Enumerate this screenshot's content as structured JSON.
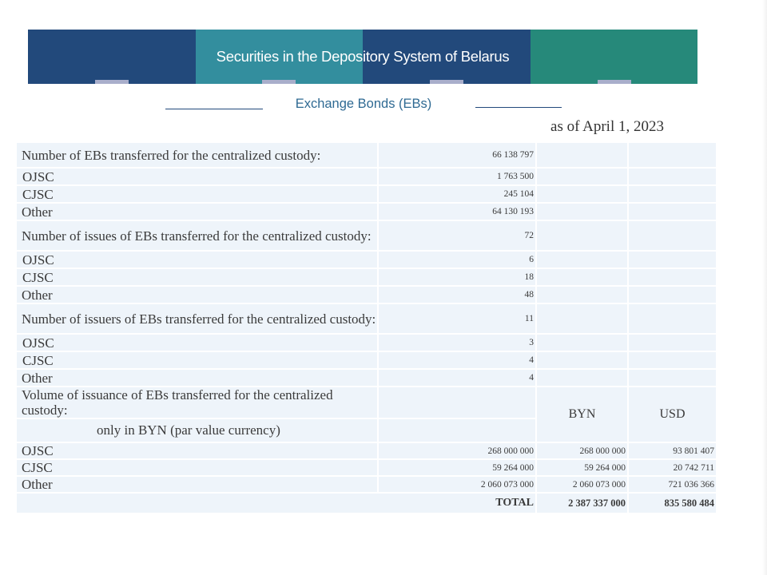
{
  "header": {
    "title": "Securities in the Depository System of Belarus",
    "subtitle": "Exchange Bonds (EBs)",
    "as_of": "as of April  1, 2023"
  },
  "colors": {
    "navy": "#22497b",
    "teal": "#338e9e",
    "green": "#26897a",
    "cell_bg": "#eef4fa",
    "subtitle_text": "#2f6a93"
  },
  "table": {
    "sections": {
      "ebs_count": {
        "label": "Number of EBs transferred for the centralized  custody:",
        "total": "66 138 797",
        "ojsc_label": "OJSC",
        "ojsc": "1 763 500",
        "cjsc_label": "CJSC",
        "cjsc": "245 104",
        "other_label": "Other",
        "other": "64 130 193"
      },
      "issues": {
        "label": "Number of issues of EBs transferred for the centralized custody:",
        "total": "72",
        "ojsc_label": "OJSC",
        "ojsc": "6",
        "cjsc_label": "CJSC",
        "cjsc": "18",
        "other_label": "Other",
        "other": "48"
      },
      "issuers": {
        "label": "Number of issuers of EBs transferred for the centralized custody:",
        "total": "11",
        "ojsc_label": "OJSC",
        "ojsc": "3",
        "cjsc_label": "CJSC",
        "cjsc": "4",
        "other_label": "Other",
        "other": "4"
      },
      "volume": {
        "label": "Volume of issuance of EBs transferred for the centralized custody:",
        "note": "only in BYN (par value currency)",
        "col_byn": "BYN",
        "col_usd": "USD",
        "rows": [
          {
            "label": "OJSC",
            "only_byn": "268 000 000",
            "byn": "268 000 000",
            "usd": "93 801 407"
          },
          {
            "label": "CJSC",
            "only_byn": "59 264 000",
            "byn": "59 264 000",
            "usd": "20 742 711"
          },
          {
            "label": "Other",
            "only_byn": "2 060 073 000",
            "byn": "2 060 073 000",
            "usd": "721 036 366"
          }
        ],
        "total_label": "TOTAL",
        "total_byn": "2 387 337 000",
        "total_usd": "835 580 484"
      }
    }
  }
}
